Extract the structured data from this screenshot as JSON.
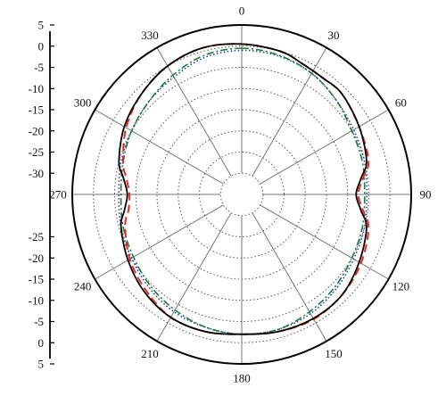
{
  "chart_data": {
    "type": "polar-line",
    "angle_unit": "degrees",
    "angle_zero": "top",
    "angle_direction": "clockwise",
    "angle_ticks": [
      "0",
      "30",
      "60",
      "90",
      "120",
      "150",
      "180",
      "210",
      "240",
      "270",
      "300",
      "330"
    ],
    "angle_tick_values": [
      0,
      30,
      60,
      90,
      120,
      150,
      180,
      210,
      240,
      270,
      300,
      330
    ],
    "radial_range": [
      -35,
      5
    ],
    "radial_ring_values": [
      -30,
      -25,
      -20,
      -15,
      -10,
      -5,
      0
    ],
    "radial_ticks_upper": [
      "5",
      "0",
      "-5",
      "-10",
      "-15",
      "-20",
      "-25",
      "-30"
    ],
    "radial_ticks_lower": [
      "-25",
      "-20",
      "-15",
      "-10",
      "-5",
      "0",
      "5"
    ],
    "radial_tick_values_upper": [
      5,
      0,
      -5,
      -10,
      -15,
      -20,
      -25,
      -30
    ],
    "radial_tick_values_lower": [
      -25,
      -20,
      -15,
      -10,
      -5,
      0,
      5
    ],
    "grid": true,
    "legend": "none",
    "series": [
      {
        "style": "solid",
        "color": "#000000",
        "theta": [
          0,
          15,
          25,
          35,
          45,
          60,
          75,
          82,
          90,
          98,
          105,
          120,
          135,
          150,
          165,
          180,
          195,
          210,
          225,
          240,
          255,
          262,
          270,
          278,
          285,
          300,
          315,
          330,
          345,
          360
        ],
        "values": [
          0.5,
          0.0,
          -1.0,
          -1.5,
          -1.5,
          -3.0,
          -4.5,
          -6.5,
          -8.0,
          -6.5,
          -4.5,
          -3.0,
          -1.5,
          -1.2,
          -1.5,
          -2.0,
          -1.5,
          -1.5,
          -2.5,
          -4.0,
          -5.5,
          -7.0,
          -8.0,
          -6.8,
          -5.0,
          -3.0,
          -1.5,
          0.0,
          0.8,
          0.5
        ]
      },
      {
        "style": "dashed",
        "color": "#e8291b",
        "theta": [
          0,
          15,
          25,
          35,
          45,
          60,
          75,
          82,
          90,
          98,
          105,
          120,
          135,
          150,
          165,
          180,
          195,
          210,
          225,
          240,
          255,
          262,
          270,
          278,
          285,
          300,
          315,
          330,
          345,
          360
        ],
        "values": [
          0.5,
          0.0,
          -1.0,
          -1.5,
          -1.5,
          -3.0,
          -4.0,
          -6.0,
          -7.5,
          -6.0,
          -4.0,
          -2.5,
          -1.5,
          -1.0,
          -1.5,
          -2.0,
          -1.5,
          -1.5,
          -3.0,
          -4.5,
          -6.5,
          -8.0,
          -8.5,
          -7.5,
          -6.0,
          -3.5,
          -1.5,
          0.0,
          0.8,
          0.5
        ]
      },
      {
        "style": "dotted",
        "color": "#1f3fbf",
        "theta": [
          0,
          15,
          30,
          45,
          60,
          75,
          90,
          105,
          120,
          135,
          150,
          165,
          180,
          195,
          210,
          225,
          240,
          255,
          270,
          285,
          300,
          315,
          330,
          345,
          360
        ],
        "values": [
          -1.0,
          -1.2,
          -2.0,
          -3.5,
          -4.5,
          -5.0,
          -5.5,
          -5.0,
          -4.5,
          -3.5,
          -2.5,
          -2.0,
          -2.0,
          -2.5,
          -3.0,
          -4.0,
          -5.0,
          -5.5,
          -6.0,
          -5.5,
          -5.0,
          -4.0,
          -3.0,
          -1.5,
          -1.0
        ]
      },
      {
        "style": "dash-dot",
        "color": "#1f7a3a",
        "theta": [
          0,
          15,
          30,
          45,
          60,
          75,
          90,
          105,
          120,
          135,
          150,
          165,
          180,
          195,
          210,
          225,
          240,
          255,
          270,
          285,
          300,
          315,
          330,
          345,
          360
        ],
        "values": [
          -0.5,
          -1.0,
          -2.0,
          -3.5,
          -5.0,
          -5.5,
          -6.0,
          -5.5,
          -5.0,
          -4.0,
          -3.0,
          -2.0,
          -2.0,
          -2.5,
          -3.5,
          -4.5,
          -5.5,
          -6.0,
          -6.5,
          -6.0,
          -5.0,
          -4.0,
          -2.5,
          -1.0,
          -0.5
        ]
      }
    ]
  }
}
